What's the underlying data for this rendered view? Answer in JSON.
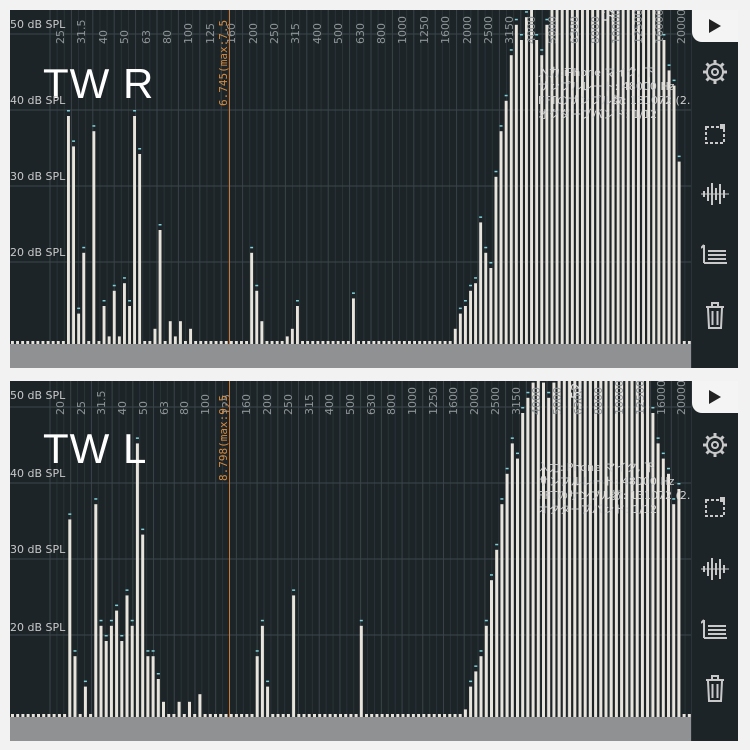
{
  "panels": [
    {
      "id": "right",
      "title": "TW R",
      "spl_labels": [
        "50 dB SPL",
        "40 dB SPL",
        "30 dB SPL",
        "20 dB SPL"
      ],
      "freq_labels": [
        "25",
        "31.5",
        "40",
        "50",
        "63",
        "80",
        "100",
        "125",
        "160",
        "200",
        "250",
        "315",
        "400",
        "500",
        "630",
        "800",
        "1000",
        "1250",
        "1600",
        "2000",
        "2500",
        "3150",
        "4000",
        "5000",
        "6300",
        "8000",
        "10000",
        "12500",
        "16000",
        "20000"
      ],
      "marker": {
        "label": "6.745(max:7.5"
      },
      "peak_label": "52",
      "info_lines": [
        "入力:iPhone マイク, 下",
        "サンプルレート: 48000 Hz",
        "FFTのサンプル数: 131072 (2.73 sec)",
        "オクターブバンド: 1/12"
      ],
      "bands_db": [
        0,
        0,
        0,
        0,
        0,
        0,
        0,
        0,
        0,
        0,
        0,
        30,
        26,
        4,
        12,
        0,
        28,
        0,
        5,
        1,
        7,
        1,
        8,
        5,
        30,
        25,
        0,
        0,
        2,
        15,
        0,
        3,
        1,
        3,
        0,
        2,
        0,
        0,
        0,
        0,
        0,
        0,
        0,
        0,
        0,
        0,
        0,
        12,
        7,
        3,
        0,
        0,
        0,
        0,
        1,
        2,
        5,
        0,
        0,
        0,
        0,
        0,
        0,
        0,
        0,
        0,
        0,
        6,
        0,
        0,
        0,
        0,
        0,
        0,
        0,
        0,
        0,
        0,
        0,
        0,
        0,
        0,
        0,
        0,
        0,
        0,
        0,
        2,
        4,
        5,
        7,
        8,
        16,
        12,
        10,
        22,
        28,
        32,
        38,
        42,
        40,
        43,
        44,
        40,
        38,
        42,
        46,
        50,
        48,
        50,
        52,
        48,
        46,
        50,
        50,
        52,
        50,
        55,
        58,
        60,
        54,
        60,
        62,
        58,
        54,
        52,
        46,
        44,
        40,
        36,
        34,
        24,
        0,
        0
      ]
    },
    {
      "id": "left",
      "title": "TW L",
      "spl_labels": [
        "50 dB SPL",
        "40 dB SPL",
        "30 dB SPL",
        "20 dB SPL"
      ],
      "freq_labels": [
        "20",
        "25",
        "31.5",
        "40",
        "50",
        "63",
        "80",
        "100",
        "125",
        "160",
        "200",
        "250",
        "315",
        "400",
        "500",
        "630",
        "800",
        "1000",
        "1250",
        "1600",
        "2000",
        "2500",
        "3150",
        "4000",
        "5000",
        "6300",
        "8000",
        "10000",
        "12500",
        "16000",
        "20000"
      ],
      "marker": {
        "label": "8.798(max:9.5"
      },
      "peak_label": "52",
      "info_lines": [
        "入力:iPhone マイク, 下",
        "サンプルレート: 48000 Hz",
        "FFTのサンプル数: 131072 (2.73 sec)",
        "オクターブバンド: 1/12"
      ],
      "bands_db": [
        0,
        0,
        0,
        0,
        0,
        0,
        0,
        0,
        0,
        0,
        0,
        26,
        8,
        0,
        4,
        0,
        28,
        12,
        10,
        12,
        14,
        10,
        16,
        12,
        36,
        24,
        8,
        8,
        5,
        2,
        0,
        0,
        2,
        0,
        2,
        0,
        3,
        0,
        0,
        0,
        0,
        0,
        0,
        0,
        0,
        0,
        0,
        8,
        12,
        4,
        0,
        0,
        0,
        0,
        16,
        0,
        0,
        0,
        0,
        0,
        0,
        0,
        0,
        0,
        0,
        0,
        0,
        12,
        0,
        0,
        0,
        0,
        0,
        0,
        0,
        0,
        0,
        0,
        0,
        0,
        0,
        0,
        0,
        0,
        0,
        0,
        0,
        1,
        4,
        6,
        8,
        12,
        18,
        22,
        28,
        32,
        36,
        34,
        40,
        42,
        44,
        46,
        44,
        42,
        44,
        46,
        48,
        50,
        48,
        50,
        52,
        54,
        56,
        56,
        54,
        55,
        56,
        58,
        56,
        54,
        52,
        48,
        46,
        40,
        36,
        34,
        32,
        28,
        30,
        0,
        0
      ]
    }
  ],
  "sidebar_icons": [
    "play-icon",
    "gear-icon",
    "selection-icon",
    "waveform-icon",
    "list-export-icon",
    "trash-icon"
  ]
}
